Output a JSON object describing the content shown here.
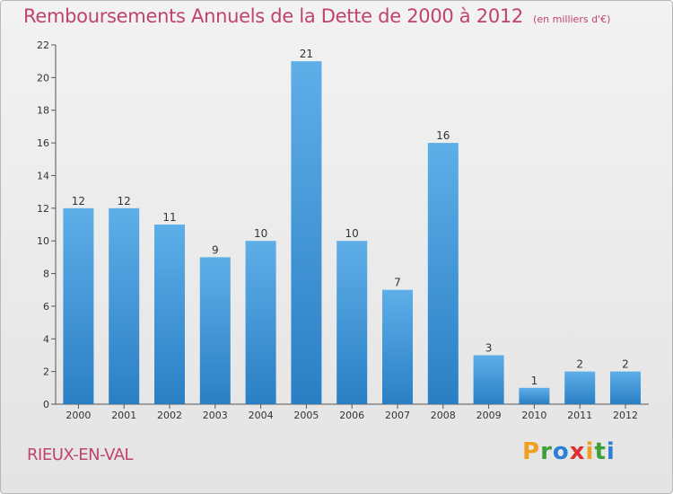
{
  "header": {
    "title": "Remboursements Annuels de la Dette de 2000 à 2012",
    "subtitle": "(en milliers d'€)"
  },
  "footer": {
    "commune": "RIEUX-EN-VAL",
    "logo_letters": [
      "P",
      "r",
      "o",
      "x",
      "i",
      "t",
      "i"
    ],
    "logo_colors": [
      "#f0a020",
      "#3da03d",
      "#2b7fd4",
      "#e02f2f",
      "#f0a020",
      "#3da03d",
      "#2b7fd4"
    ]
  },
  "colors": {
    "bar_top": "#5eaee8",
    "bar_bottom": "#2a7fc4",
    "title": "#c0426e"
  },
  "chart_data": {
    "type": "bar",
    "title": "Remboursements Annuels de la Dette de 2000 à 2012",
    "subtitle": "(en milliers d'€)",
    "categories": [
      "2000",
      "2001",
      "2002",
      "2003",
      "2004",
      "2005",
      "2006",
      "2007",
      "2008",
      "2009",
      "2010",
      "2011",
      "2012"
    ],
    "values": [
      12,
      12,
      11,
      9,
      10,
      21,
      10,
      7,
      16,
      3,
      1,
      2,
      2
    ],
    "data_labels": [
      "12",
      "12",
      "11",
      "9",
      "10",
      "21",
      "10",
      "7",
      "16",
      "3",
      "1",
      "2",
      "2"
    ],
    "ylim": [
      0,
      22
    ],
    "yticks": [
      0,
      2,
      4,
      6,
      8,
      10,
      12,
      14,
      16,
      18,
      20,
      22
    ],
    "grid": false,
    "legend": "none"
  }
}
